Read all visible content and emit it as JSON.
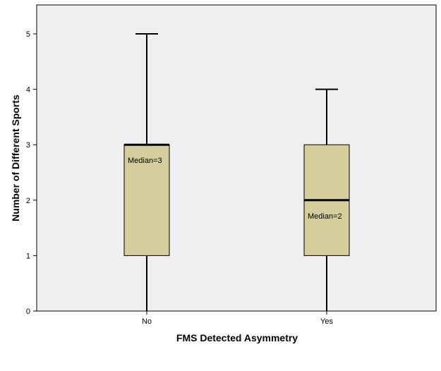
{
  "chart_data": {
    "type": "boxplot",
    "xlabel": "FMS Detected Asymmetry",
    "ylabel": "Number of Different Sports",
    "categories": [
      "No",
      "Yes"
    ],
    "ylim": [
      0,
      5.5
    ],
    "yticks": [
      "0",
      "1",
      "2",
      "3",
      "4",
      "5"
    ],
    "grid": false,
    "boxes": [
      {
        "category": "No",
        "min": 0,
        "q1": 1,
        "median": 3,
        "q3": 3,
        "max": 5,
        "median_label": "Median=3"
      },
      {
        "category": "Yes",
        "min": 0,
        "q1": 1,
        "median": 2,
        "q3": 3,
        "max": 4,
        "median_label": "Median=2"
      }
    ],
    "colors": {
      "box_fill": "#d5cd9b",
      "plot_background": "#efefef",
      "stroke": "#000000"
    }
  }
}
